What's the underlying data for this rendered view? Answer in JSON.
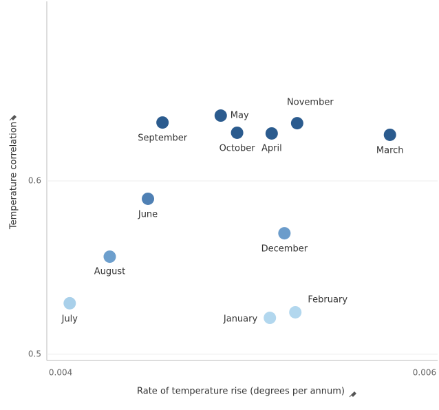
{
  "chart_data": {
    "type": "scatter",
    "x_label": "Rate of temperature rise (degrees per annum)",
    "y_label": "Temperature correlation",
    "labels": [
      "July",
      "August",
      "June",
      "September",
      "May",
      "October",
      "April",
      "November",
      "March",
      "December",
      "January",
      "February"
    ],
    "x": [
      0.00405,
      0.00427,
      0.00448,
      0.00456,
      0.00488,
      0.00497,
      0.00516,
      0.0053,
      0.00581,
      0.00523,
      0.00515,
      0.00529
    ],
    "y": [
      0.5294,
      0.5563,
      0.5897,
      0.6337,
      0.6377,
      0.6278,
      0.6274,
      0.6333,
      0.6266,
      0.5698,
      0.521,
      0.5242
    ],
    "colors": [
      "#a9d0ea",
      "#6d9fcd",
      "#4f80b4",
      "#2b5b8e",
      "#2b5b8e",
      "#2b5b8e",
      "#2b5b8e",
      "#2b5b8e",
      "#2b5b8e",
      "#6b9ccb",
      "#b2d7ee",
      "#b2d7ee"
    ],
    "xlim": [
      0.003924,
      0.006072
    ],
    "xticks": [
      0.004,
      0.006
    ],
    "ylim": [
      0.4964,
      0.7036
    ],
    "yticks": [
      0.5,
      0.6
    ],
    "grid": true
  }
}
